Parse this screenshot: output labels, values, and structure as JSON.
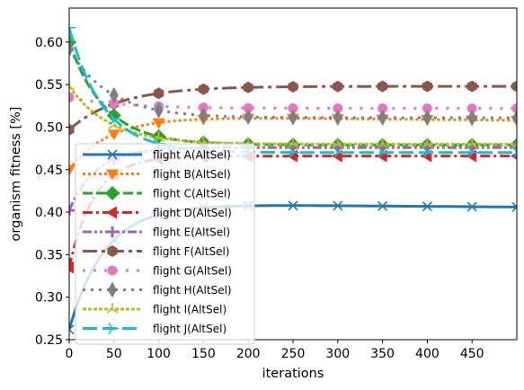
{
  "chart_data": {
    "type": "line",
    "title": "",
    "xlabel": "iterations",
    "ylabel": "organism fitness [%]",
    "xlim": [
      0,
      500
    ],
    "ylim": [
      0.25,
      0.64
    ],
    "xticks": [
      0,
      50,
      100,
      150,
      200,
      250,
      300,
      350,
      400,
      450
    ],
    "yticks": [
      0.25,
      0.3,
      0.35,
      0.4,
      0.45,
      0.5,
      0.55,
      0.6
    ],
    "grid": false,
    "legend_position": "lower-left",
    "marker_every": 50,
    "series": [
      {
        "name": "flight A(AltSel)",
        "color": "#1f77b4",
        "dash": "solid",
        "marker": "x",
        "start": 0.262,
        "end": 0.41,
        "rate": 40,
        "drift": 0.004,
        "width": 3
      },
      {
        "name": "flight B(AltSel)",
        "color": "#ff7f0e",
        "dash": "dotted",
        "marker": "triangle-down",
        "start": 0.45,
        "end": 0.513,
        "rate": 45,
        "drift": 0.005,
        "width": 3
      },
      {
        "name": "flight C(AltSel)",
        "color": "#2ca02c",
        "dash": "dashed",
        "marker": "diamond",
        "start": 0.6,
        "end": 0.479,
        "rate": 40,
        "drift": 0,
        "width": 3
      },
      {
        "name": "flight D(AltSel)",
        "color": "#d62728",
        "dash": "dashdot",
        "marker": "triangle-left",
        "start": 0.335,
        "end": 0.466,
        "rate": 28,
        "drift": 0,
        "width": 3
      },
      {
        "name": "flight E(AltSel)",
        "color": "#9467bd",
        "dash": "dashdotdot",
        "marker": "plus",
        "start": 0.402,
        "end": 0.476,
        "rate": 30,
        "drift": 0,
        "width": 3
      },
      {
        "name": "flight F(AltSel)",
        "color": "#8c564b",
        "dash": "longdashdot",
        "marker": "hexagon",
        "start": 0.497,
        "end": 0.548,
        "rate": 55,
        "drift": 0,
        "width": 3
      },
      {
        "name": "flight G(AltSel)",
        "color": "#e377c2",
        "dash": "loosedot",
        "marker": "circle",
        "start": 0.535,
        "end": 0.522,
        "rate": 60,
        "drift": 0,
        "width": 3
      },
      {
        "name": "flight H(AltSel)",
        "color": "#7f7f7f",
        "dash": "densedot",
        "marker": "thin-diamond",
        "start": 0.592,
        "end": 0.511,
        "rate": 45,
        "drift": 0,
        "width": 3
      },
      {
        "name": "flight I(AltSel)",
        "color": "#bcbd22",
        "dash": "finedot",
        "marker": "tri-up",
        "start": 0.548,
        "end": 0.48,
        "rate": 45,
        "drift": 0,
        "width": 3
      },
      {
        "name": "flight J(AltSel)",
        "color": "#17becf",
        "dash": "longdash",
        "marker": "tri-right",
        "start": 0.617,
        "end": 0.47,
        "rate": 38,
        "drift": 0,
        "width": 3
      }
    ]
  }
}
